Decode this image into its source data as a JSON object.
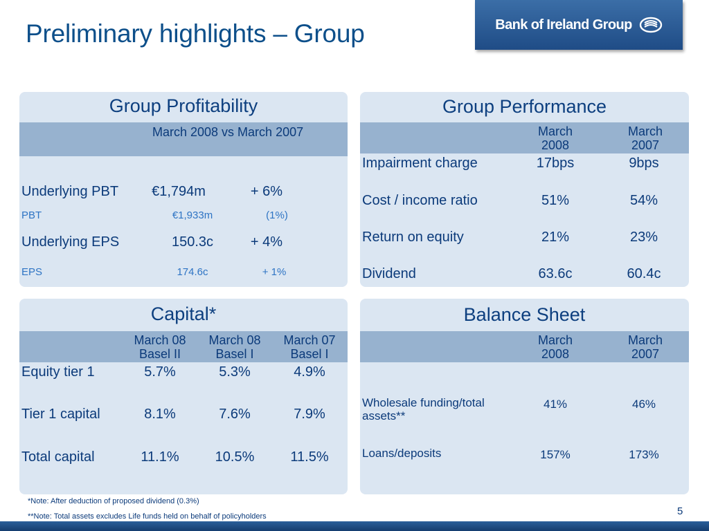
{
  "title": "Preliminary highlights – Group",
  "logo": {
    "text": "Bank of Ireland Group",
    "icon": "bank-of-ireland-logo-icon"
  },
  "profitability": {
    "title": "Group Profitability",
    "header": "March 2008 vs March 2007",
    "rows": [
      {
        "label": "Underlying PBT",
        "value": "€1,794m",
        "change": "+ 6%"
      },
      {
        "label": "PBT",
        "value": "€1,933m",
        "change": "(1%)"
      },
      {
        "label": "Underlying EPS",
        "value": "150.3c",
        "change": "+ 4%"
      },
      {
        "label": "EPS",
        "value": "174.6c",
        "change": "+ 1%"
      }
    ]
  },
  "performance": {
    "title": "Group Performance",
    "col1": "March\n2008",
    "col2": "March\n2007",
    "rows": [
      {
        "label": "Impairment charge",
        "v1": "17bps",
        "v2": "9bps"
      },
      {
        "label": "Cost / income ratio",
        "v1": "51%",
        "v2": "54%"
      },
      {
        "label": "Return on equity",
        "v1": "21%",
        "v2": "23%"
      },
      {
        "label": "Dividend",
        "v1": "63.6c",
        "v2": "60.4c"
      }
    ]
  },
  "capital": {
    "title": "Capital*",
    "cols": [
      "March 08\nBasel II",
      "March 08\nBasel I",
      "March 07\nBasel I"
    ],
    "rows": [
      {
        "label": "Equity tier 1",
        "v": [
          "5.7%",
          "5.3%",
          "4.9%"
        ]
      },
      {
        "label": "Tier 1 capital",
        "v": [
          "8.1%",
          "7.6%",
          "7.9%"
        ]
      },
      {
        "label": "Total capital",
        "v": [
          "11.1%",
          "10.5%",
          "11.5%"
        ]
      }
    ]
  },
  "balance": {
    "title": "Balance Sheet",
    "col1": "March\n2008",
    "col2": "March\n2007",
    "rows": [
      {
        "label": "Wholesale funding/total\nassets**",
        "v1": "41%",
        "v2": "46%"
      },
      {
        "label": "Loans/deposits",
        "v1": "157%",
        "v2": "173%"
      }
    ]
  },
  "footnotes": [
    "*Note: After deduction of proposed dividend (0.3%)",
    "**Note: Total assets excludes Life funds held on behalf of policyholders"
  ],
  "page_number": "5",
  "colors": {
    "title": "#0d4f8a",
    "panel": "#dbe6f2",
    "header_band": "#97b2cf",
    "highlight_text": "#2e74c4"
  }
}
